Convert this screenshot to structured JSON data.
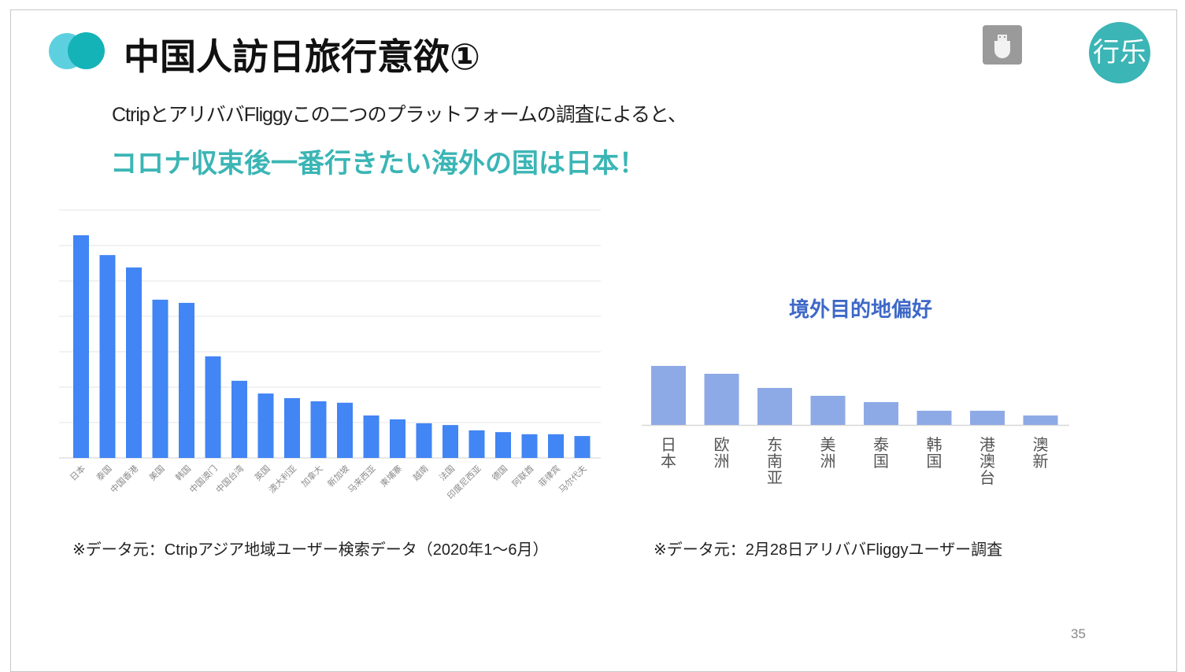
{
  "slide": {
    "title": "中国人訪日旅行意欲①",
    "subtitle": "CtripとアリババFliggyこの二つのプラットフォームの調査によると、",
    "headline": "コロナ収束後一番行きたい海外の国は日本！",
    "source_left": "※データ元：Ctripアジア地域ユーザー検索データ（2020年1～6月）",
    "source_right": "※データ元：2月28日アリババFliggyユーザー調査",
    "logo_text": "行乐",
    "page_number": "35",
    "colors": {
      "accent": "#3bb5b5",
      "dot_light": "#5dd0e0",
      "dot_dark": "#14b3b8",
      "bar_left": "#4285f4",
      "bar_right": "#8eaae6",
      "chart_title": "#3e68c8"
    }
  },
  "chart_data": [
    {
      "type": "bar",
      "title": "",
      "xlabel": "",
      "ylabel": "",
      "categories": [
        "日本",
        "泰国",
        "中国香港",
        "美国",
        "韩国",
        "中国澳门",
        "中国台湾",
        "英国",
        "澳大利亚",
        "加拿大",
        "新加坡",
        "马来西亚",
        "柬埔寨",
        "越南",
        "法国",
        "印度尼西亚",
        "德国",
        "阿联酋",
        "菲律宾",
        "马尔代夫"
      ],
      "values": [
        6.29,
        5.73,
        5.38,
        4.47,
        4.38,
        2.87,
        2.18,
        1.82,
        1.69,
        1.6,
        1.56,
        1.2,
        1.09,
        0.98,
        0.93,
        0.78,
        0.73,
        0.67,
        0.67,
        0.62
      ],
      "ylim": [
        0,
        7
      ],
      "grid": true,
      "legend": "none"
    },
    {
      "type": "bar",
      "title": "境外目的地偏好",
      "xlabel": "",
      "ylabel": "",
      "categories": [
        "日本",
        "欧洲",
        "东南亚",
        "美洲",
        "泰国",
        "韩国",
        "港澳台",
        "澳新"
      ],
      "values": [
        7.5,
        6.5,
        4.7,
        3.7,
        2.9,
        1.8,
        1.8,
        1.2
      ],
      "ylim": [
        0,
        10
      ],
      "grid": false,
      "legend": "none"
    }
  ]
}
